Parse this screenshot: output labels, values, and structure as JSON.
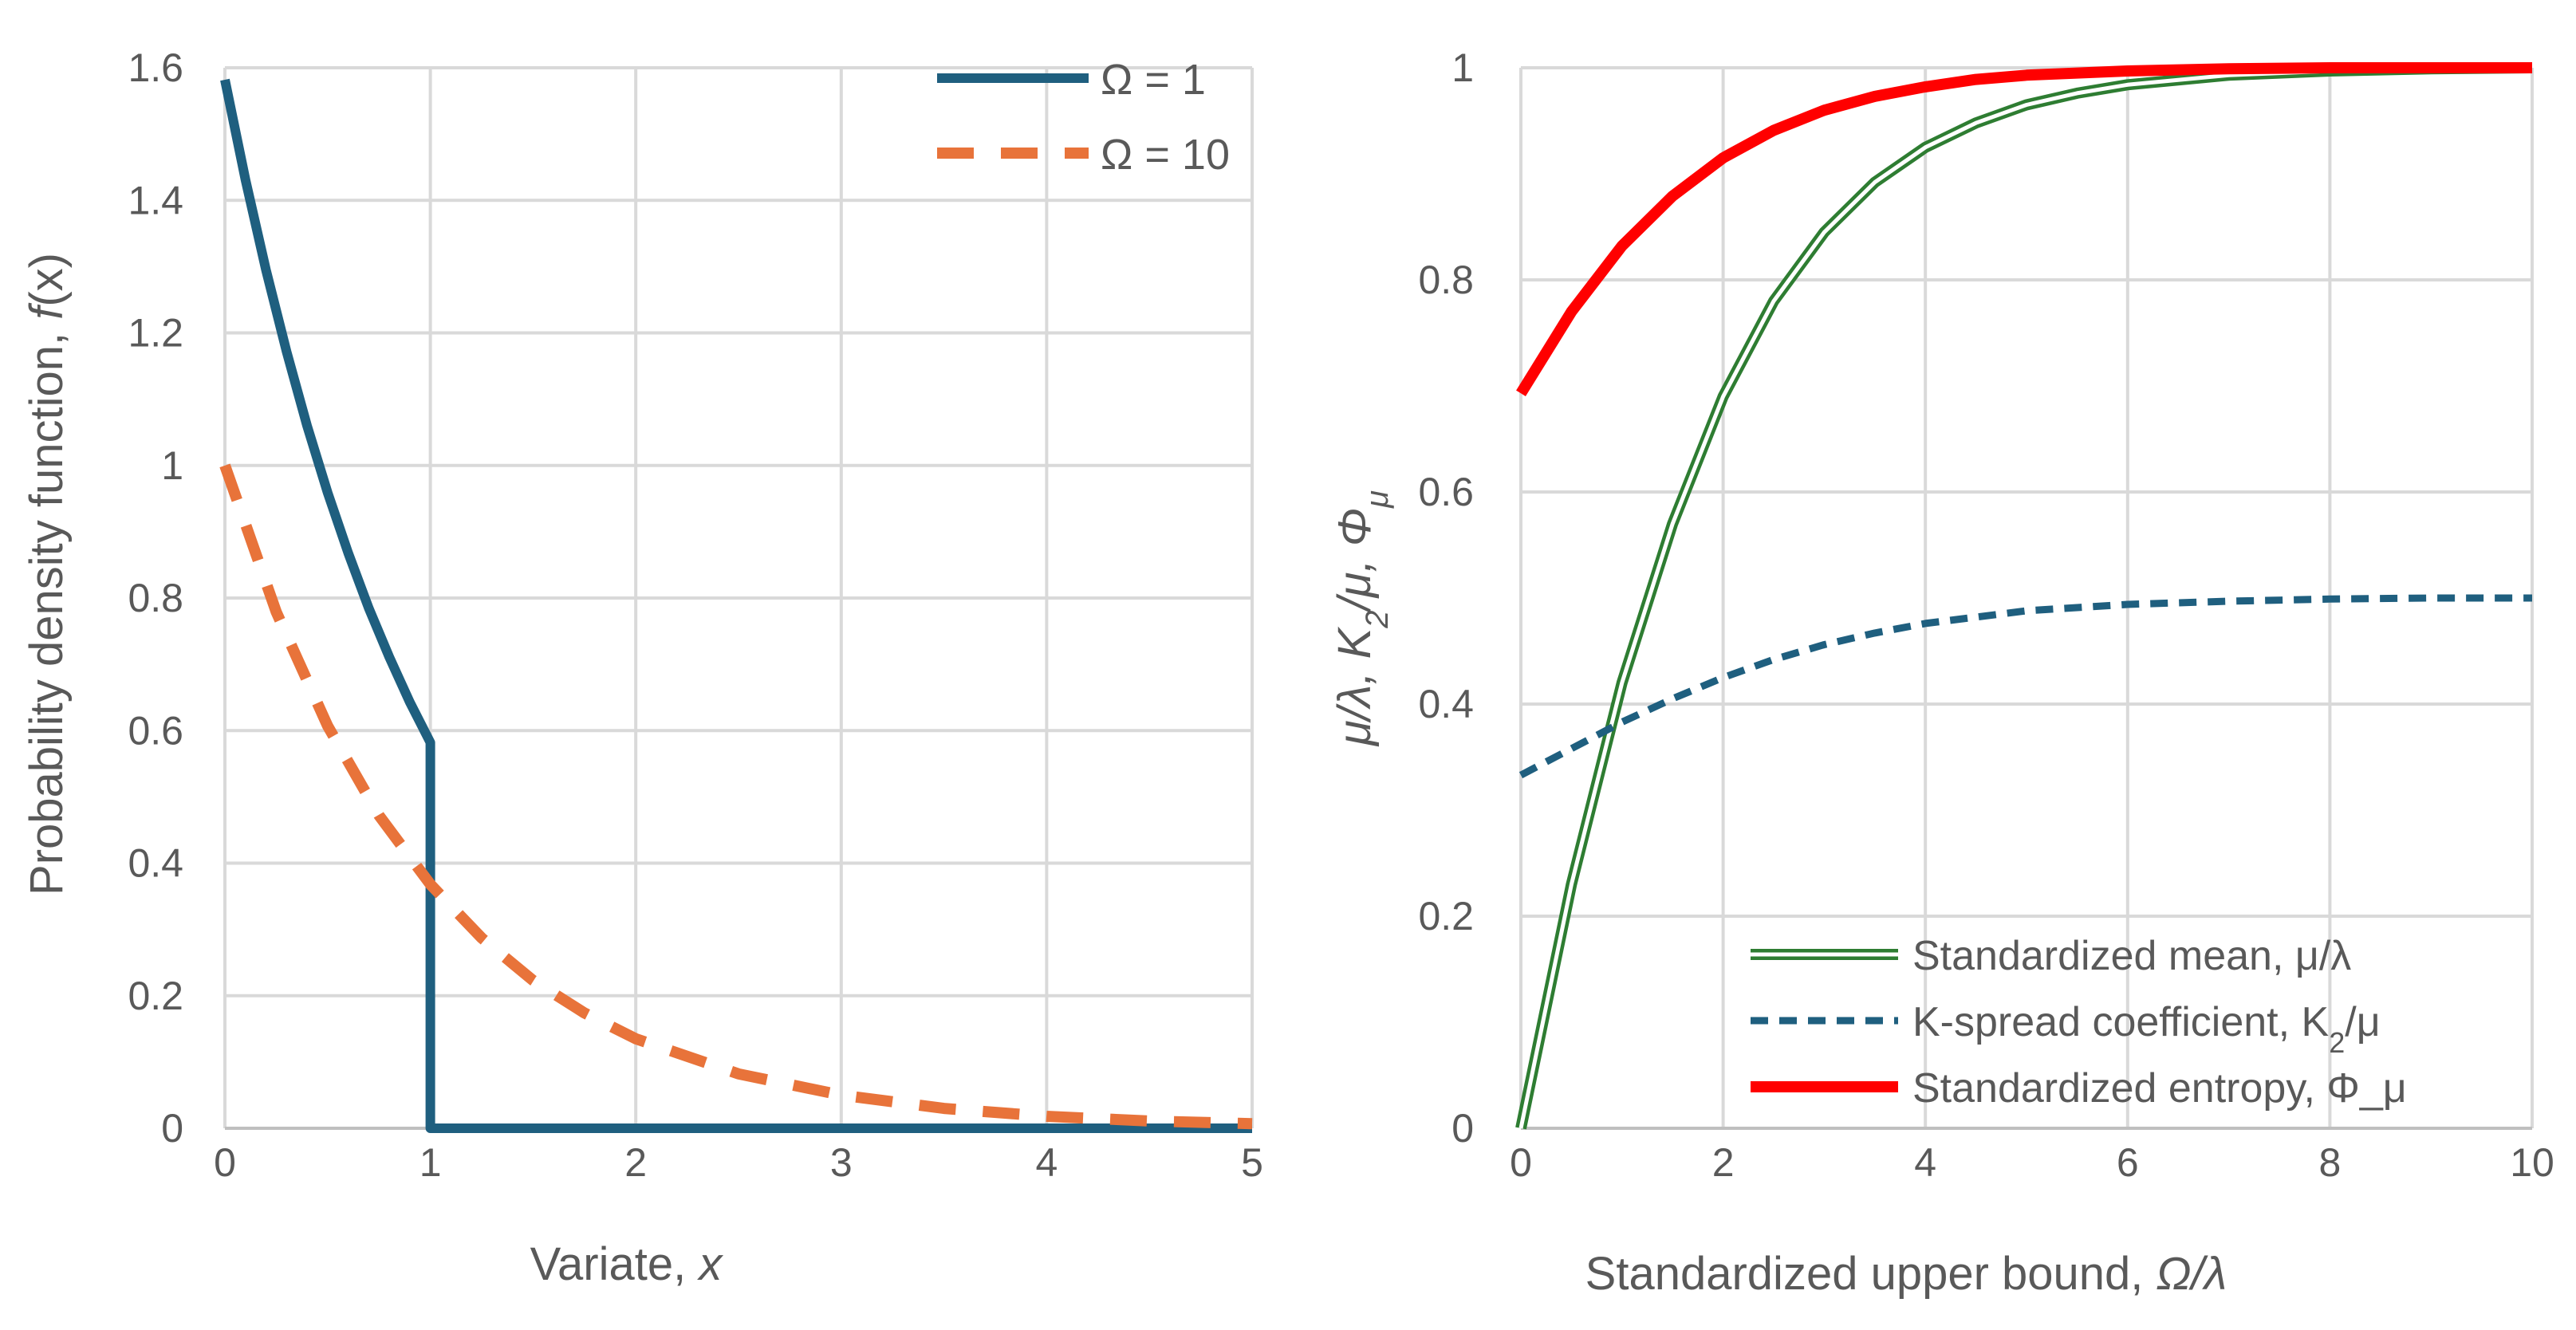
{
  "chart_data": [
    {
      "type": "line",
      "xlabel_prefix": "Variate, ",
      "xlabel_var": "x",
      "ylabel_prefix": "Probability density function, ",
      "ylabel_var": "f",
      "ylabel_arg": "(x)",
      "xlim": [
        0,
        5
      ],
      "ylim": [
        0,
        1.6
      ],
      "x_ticks": [
        "0",
        "1",
        "2",
        "3",
        "4",
        "5"
      ],
      "y_ticks": [
        "0",
        "0.2",
        "0.4",
        "0.6",
        "0.8",
        "1",
        "1.2",
        "1.4",
        "1.6"
      ],
      "grid": true,
      "legend_position": "top-right",
      "series": [
        {
          "name": "Ω = 1",
          "color": "#1f5f7f",
          "style": "solid",
          "x": [
            0,
            0.1,
            0.2,
            0.3,
            0.4,
            0.5,
            0.6,
            0.7,
            0.8,
            0.9,
            1,
            1,
            5
          ],
          "y": [
            1.582,
            1.431,
            1.295,
            1.172,
            1.06,
            0.959,
            0.868,
            0.785,
            0.711,
            0.643,
            0.582,
            0,
            0
          ]
        },
        {
          "name": "Ω = 10",
          "color": "#e8733a",
          "style": "dashed",
          "x": [
            0,
            0.25,
            0.5,
            0.75,
            1,
            1.25,
            1.5,
            1.75,
            2,
            2.5,
            3,
            3.5,
            4,
            4.5,
            5
          ],
          "y": [
            1.0,
            0.779,
            0.607,
            0.472,
            0.368,
            0.287,
            0.223,
            0.174,
            0.135,
            0.082,
            0.05,
            0.03,
            0.018,
            0.011,
            0.007
          ]
        }
      ]
    },
    {
      "type": "line",
      "xlabel_prefix": "Standardized upper bound, ",
      "xlabel_var": "Ω/λ",
      "ylabel_parts": [
        "μ/λ, K",
        "2",
        "/μ, Φ",
        "μ"
      ],
      "xlim": [
        0,
        10
      ],
      "ylim": [
        0,
        1
      ],
      "x_ticks": [
        "0",
        "2",
        "4",
        "6",
        "8",
        "10"
      ],
      "y_ticks": [
        "0",
        "0.2",
        "0.4",
        "0.6",
        "0.8",
        "1"
      ],
      "grid": true,
      "legend_position": "bottom-right",
      "series": [
        {
          "name_parts": [
            "Standardized mean, μ/λ"
          ],
          "color": "#2e7d32",
          "style": "double",
          "x": [
            0,
            0.5,
            1,
            1.5,
            2,
            2.5,
            3,
            3.5,
            4,
            4.5,
            5,
            5.5,
            6,
            7,
            8,
            9,
            10
          ],
          "y": [
            0,
            0.23,
            0.42,
            0.57,
            0.69,
            0.78,
            0.845,
            0.892,
            0.925,
            0.948,
            0.965,
            0.976,
            0.984,
            0.993,
            0.997,
            0.999,
            1.0
          ]
        },
        {
          "name_parts": [
            "K-spread coefficient, K",
            "2",
            "/μ"
          ],
          "color": "#1f5f7f",
          "style": "dashed",
          "x": [
            0,
            0.5,
            1,
            1.5,
            2,
            2.5,
            3,
            3.5,
            4,
            5,
            6,
            7,
            8,
            9,
            10
          ],
          "y": [
            0.333,
            0.358,
            0.383,
            0.405,
            0.425,
            0.442,
            0.456,
            0.467,
            0.476,
            0.488,
            0.494,
            0.497,
            0.499,
            0.5,
            0.5
          ]
        },
        {
          "name_parts": [
            "Standardized entropy, Φ_μ"
          ],
          "color": "#ff0000",
          "style": "solid",
          "x": [
            0,
            0.5,
            1,
            1.5,
            2,
            2.5,
            3,
            3.5,
            4,
            4.5,
            5,
            6,
            7,
            8,
            9,
            10
          ],
          "y": [
            0.693,
            0.77,
            0.832,
            0.879,
            0.915,
            0.941,
            0.96,
            0.973,
            0.982,
            0.989,
            0.993,
            0.997,
            0.999,
            1.0,
            1.0,
            1.0
          ]
        }
      ]
    }
  ]
}
